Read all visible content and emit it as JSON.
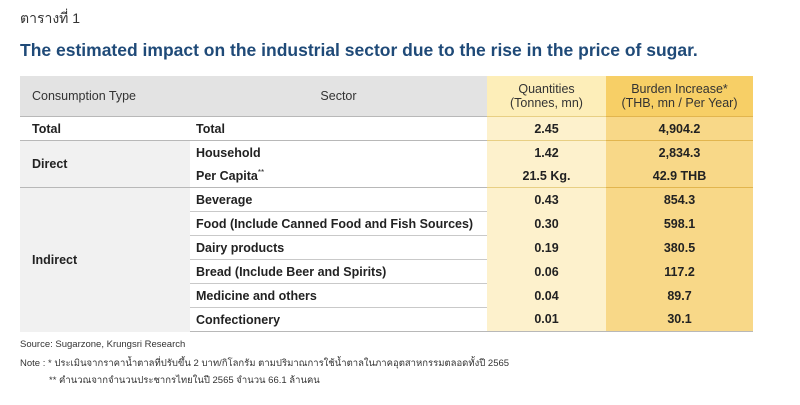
{
  "table_label": "ตารางที่ 1",
  "title": "The estimated impact on the industrial sector due to the rise in the price of sugar.",
  "headers": {
    "consumption_type": "Consumption  Type",
    "sector": "Sector",
    "quantities_line1": "Quantities",
    "quantities_line2": "(Tonnes, mn)",
    "burden_line1": "Burden Increase*",
    "burden_line2": "(THB, mn / Per Year)"
  },
  "groups": {
    "total": "Total",
    "direct": "Direct",
    "indirect": "Indirect"
  },
  "rows": [
    {
      "sector": "Total",
      "quantity": "2.45",
      "burden": "4,904.2"
    },
    {
      "sector": "Household",
      "quantity": "1.42",
      "burden": "2,834.3"
    },
    {
      "sector": "Per Capita",
      "sup": "**",
      "quantity": "21.5 Kg.",
      "burden": "42.9 THB"
    },
    {
      "sector": "Beverage",
      "quantity": "0.43",
      "burden": "854.3"
    },
    {
      "sector": "Food (Include Canned Food and Fish Sources)",
      "quantity": "0.30",
      "burden": "598.1"
    },
    {
      "sector": "Dairy products",
      "quantity": "0.19",
      "burden": "380.5"
    },
    {
      "sector": "Bread (Include Beer and Spirits)",
      "quantity": "0.06",
      "burden": "117.2"
    },
    {
      "sector": "Medicine and others",
      "quantity": "0.04",
      "burden": "89.7"
    },
    {
      "sector": "Confectionery",
      "quantity": "0.01",
      "burden": "30.1"
    }
  ],
  "source": "Source: Sugarzone, Krungsri Research",
  "note1": "Note :  *   ประเมินจากราคาน้ำตาลที่ปรับขึ้น 2 บาท/กิโลกรัม ตามปริมาณการใช้น้ำตาลในภาคอุตสาหกรรมตลอดทั้งปี 2565",
  "note2": "** คำนวณจากจำนวนประชากรไทยในปี 2565 จำนวน 66.1 ล้านคน"
}
